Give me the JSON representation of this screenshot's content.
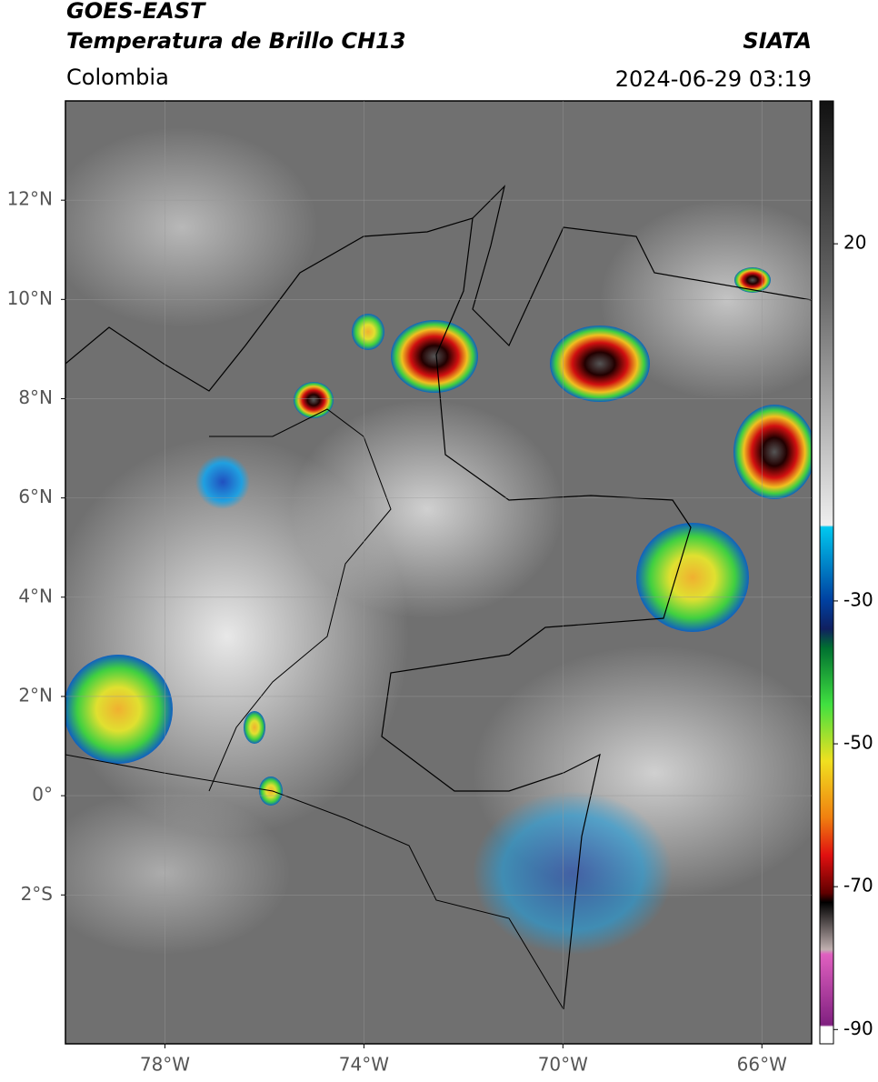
{
  "header": {
    "title": "GOES-EAST",
    "subtitle": "Temperatura de Brillo CH13",
    "source": "SIATA",
    "region": "Colombia",
    "datetime": "2024-06-29 03:19"
  },
  "map": {
    "xlim": [
      -80,
      -65
    ],
    "ylim": [
      -5,
      14
    ],
    "xticks": [
      {
        "value": -78,
        "label": "78°W"
      },
      {
        "value": -74,
        "label": "74°W"
      },
      {
        "value": -70,
        "label": "70°W"
      },
      {
        "value": -66,
        "label": "66°W"
      }
    ],
    "yticks": [
      {
        "value": 12,
        "label": "12°N"
      },
      {
        "value": 10,
        "label": "10°N"
      },
      {
        "value": 8,
        "label": "8°N"
      },
      {
        "value": 6,
        "label": "6°N"
      },
      {
        "value": 4,
        "label": "4°N"
      },
      {
        "value": 2,
        "label": "2°N"
      },
      {
        "value": 0,
        "label": "0°"
      },
      {
        "value": -2,
        "label": "2°S"
      }
    ],
    "grid": true
  },
  "colorbar": {
    "lim": [
      -92,
      40
    ],
    "ticks": [
      20,
      -30,
      -50,
      -70,
      -90
    ]
  }
}
